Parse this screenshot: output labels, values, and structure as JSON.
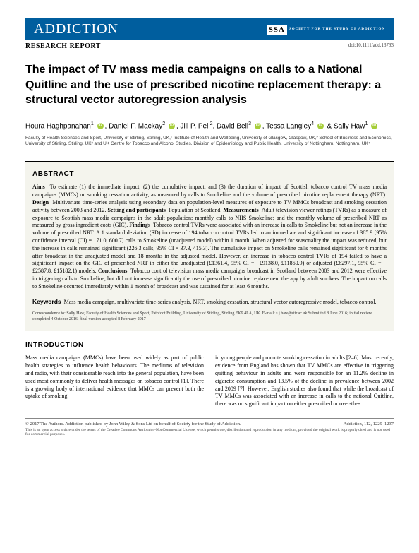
{
  "journal": "ADDICTION",
  "ssa_text": "SOCIETY FOR THE STUDY OF ADDICTION",
  "section_label": "RESEARCH REPORT",
  "doi": "doi:10.1111/add.13793",
  "title": "The impact of TV mass media campaigns on calls to a National Quitline and the use of prescribed nicotine replacement therapy: a structural vector autoregression analysis",
  "authors_html": "Houra Haghpanahan¹ ⊙, Daniel F. Mackay² ⊙, Jill P. Pell², David Bell³ ⊙, Tessa Langley⁴ ⊙ & Sally Haw¹ ⊙",
  "authors": {
    "a1": "Houra Haghpanahan",
    "a2": "Daniel F. Mackay",
    "a3": "Jill P. Pell",
    "a4": "David Bell",
    "a5": "Tessa Langley",
    "a6": "Sally Haw"
  },
  "affiliations": "Faculty of Health Sciences and Sport, University of Stirling, Stirling, UK,¹ Institute of Health and Wellbeing, University of Glasgow, Glasgow, UK,² School of Business and Economics, University of Stirling, Stirling, UK³ and UK Centre for Tobacco and Alcohol Studies, Division of Epidemiology and Public Health, University of Nottingham, Nottingham, UK⁴",
  "abstract": {
    "heading": "ABSTRACT",
    "aims_label": "Aims",
    "aims": "To estimate (1) the immediate impact; (2) the cumulative impact; and (3) the duration of impact of Scottish tobacco control TV mass media campaigns (MMCs) on smoking cessation activity, as measured by calls to Smokeline and the volume of prescribed nicotine replacement therapy (NRT).",
    "design_label": "Design",
    "design": "Multivariate time-series analysis using secondary data on population-level measures of exposure to TV MMCs broadcast and smoking cessation activity between 2003 and 2012.",
    "setting_label": "Setting and participants",
    "setting": "Population of Scotland.",
    "measurements_label": "Measurements",
    "measurements": "Adult television viewer ratings (TVRs) as a measure of exposure to Scottish mass media campaigns in the adult population; monthly calls to NHS Smokeline; and the monthly volume of prescribed NRT as measured by gross ingredient costs (GIC).",
    "findings_label": "Findings",
    "findings": "Tobacco control TVRs were associated with an increase in calls to Smokeline but not an increase in the volume of prescribed NRT. A 1 standard deviation (SD) increase of 194 tobacco control TVRs led to an immediate and significant increase of 385.9 [95% confidence interval (CI) = 171.0, 600.7] calls to Smokeline (unadjusted model) within 1 month. When adjusted for seasonality the impact was reduced, but the increase in calls remained significant (226.3 calls, 95% CI = 37.3, 415.3). The cumulative impact on Smokeline calls remained significant for 6 months after broadcast in the unadjusted model and 18 months in the adjusted model. However, an increase in tobacco control TVRs of 194 failed to have a significant impact on the GIC of prescribed NRT in either the unadjusted (£1361.4, 95% CI = −£9138.0, £11860.9) or adjusted (£6297.1, 95% CI = −£2587.8, £15182.1) models.",
    "conclusions_label": "Conclusions",
    "conclusions": "Tobacco control television mass media campaigns broadcast in Scotland between 2003 and 2012 were effective in triggering calls to Smokeline, but did not increase significantly the use of prescribed nicotine replacement therapy by adult smokers. The impact on calls to Smokeline occurred immediately within 1 month of broadcast and was sustained for at least 6 months.",
    "keywords_label": "Keywords",
    "keywords": "Mass media campaign, multivariate time-series analysis, NRT, smoking cessation, structural vector autoregressive model, tobacco control.",
    "correspondence": "Correspondence to: Sally Haw, Faculty of Health Sciences and Sport, Pathfoot Building, University of Stirling, Stirling FK9 4LA, UK. E-mail: s.j.haw@stir.ac.uk Submitted 8 June 2016; initial review completed 4 October 2016; final version accepted 8 February 2017"
  },
  "intro": {
    "heading": "INTRODUCTION",
    "col1": "Mass media campaigns (MMCs) have been used widely as part of public health strategies to influence health behaviours. The mediums of television and radio, with their considerable reach into the general population, have been used most commonly to deliver health messages on tobacco control [1]. There is a growing body of international evidence that MMCs can prevent both the uptake of smoking",
    "col2": "in young people and promote smoking cessation in adults [2–6]. Most recently, evidence from England has shown that TV MMCs are effective in triggering quitting behaviour in adults and were responsible for an 11.2% decline in cigarette consumption and 13.5% of the decline in prevalence between 2002 and 2009 [7]. However, English studies also found that while the broadcast of TV MMCs was associated with an increase in calls to the national Quitline, there was no significant impact on either prescribed or over-the-"
  },
  "footer": {
    "left": "© 2017 The Authors. Addiction published by John Wiley & Sons Ltd on behalf of Society for the Study of Addiction.",
    "right": "Addiction, 112, 1229–1237",
    "note": "This is an open access article under the terms of the Creative Commons Attribution-NonCommercial License, which permits use, distribution and reproduction in any medium, provided the original work is properly cited and is not used for commercial purposes."
  }
}
